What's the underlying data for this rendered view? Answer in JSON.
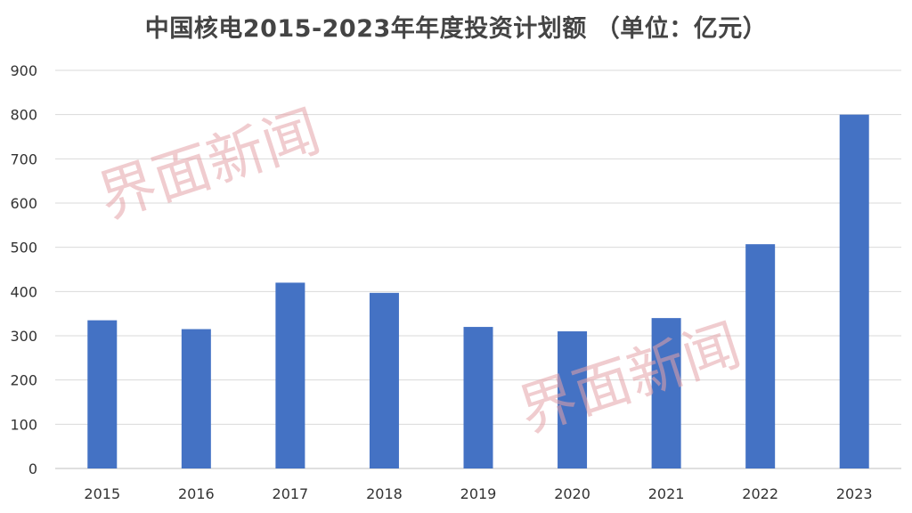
{
  "chart_data": {
    "type": "bar",
    "title": "中国核电2015-2023年年度投资计划额 （单位：亿元）",
    "xlabel": "",
    "ylabel": "",
    "categories": [
      "2015",
      "2016",
      "2017",
      "2018",
      "2019",
      "2020",
      "2021",
      "2022",
      "2023"
    ],
    "values": [
      335,
      315,
      420,
      397,
      320,
      310,
      340,
      507,
      800
    ],
    "ylim": [
      0,
      900
    ],
    "yticks": [
      "0",
      "100",
      "200",
      "300",
      "400",
      "500",
      "600",
      "700",
      "800",
      "900"
    ],
    "grid": true,
    "legend": "none",
    "bar_color": "#4472C4",
    "grid_color": "#d9d9d9"
  },
  "watermark": {
    "text": "界面新闻",
    "color": "#e4a3a8"
  }
}
